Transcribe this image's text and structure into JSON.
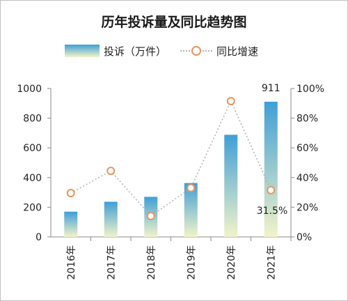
{
  "chart_data": {
    "type": "bar",
    "title": "历年投诉量及同比趋势图",
    "categories": [
      "2016年",
      "2017年",
      "2018年",
      "2019年",
      "2020年",
      "2021年"
    ],
    "series": [
      {
        "name": "投诉（万件）",
        "type": "bar",
        "axis": "left",
        "values": [
          170,
          237,
          270,
          363,
          688,
          911
        ]
      },
      {
        "name": "同比增速",
        "type": "line",
        "axis": "right",
        "values": [
          29.5,
          44.5,
          14,
          33,
          91.5,
          31.5
        ]
      }
    ],
    "ylim": [
      0,
      1000
    ],
    "y_ticks": [
      "0",
      "200",
      "400",
      "600",
      "800",
      "1000"
    ],
    "y2lim": [
      0,
      100
    ],
    "y2_ticks": [
      "0%",
      "20%",
      "40%",
      "60%",
      "80%",
      "100%"
    ],
    "data_labels": [
      "911",
      "31.5%"
    ],
    "legend_position": "top",
    "grid": false,
    "colors": {
      "bar_top": "#3f9fd6",
      "bar_bottom": "#f2f3c9",
      "line": "#b0b0b0",
      "marker": "#e8955c",
      "axis": "#8a8a8a"
    }
  }
}
